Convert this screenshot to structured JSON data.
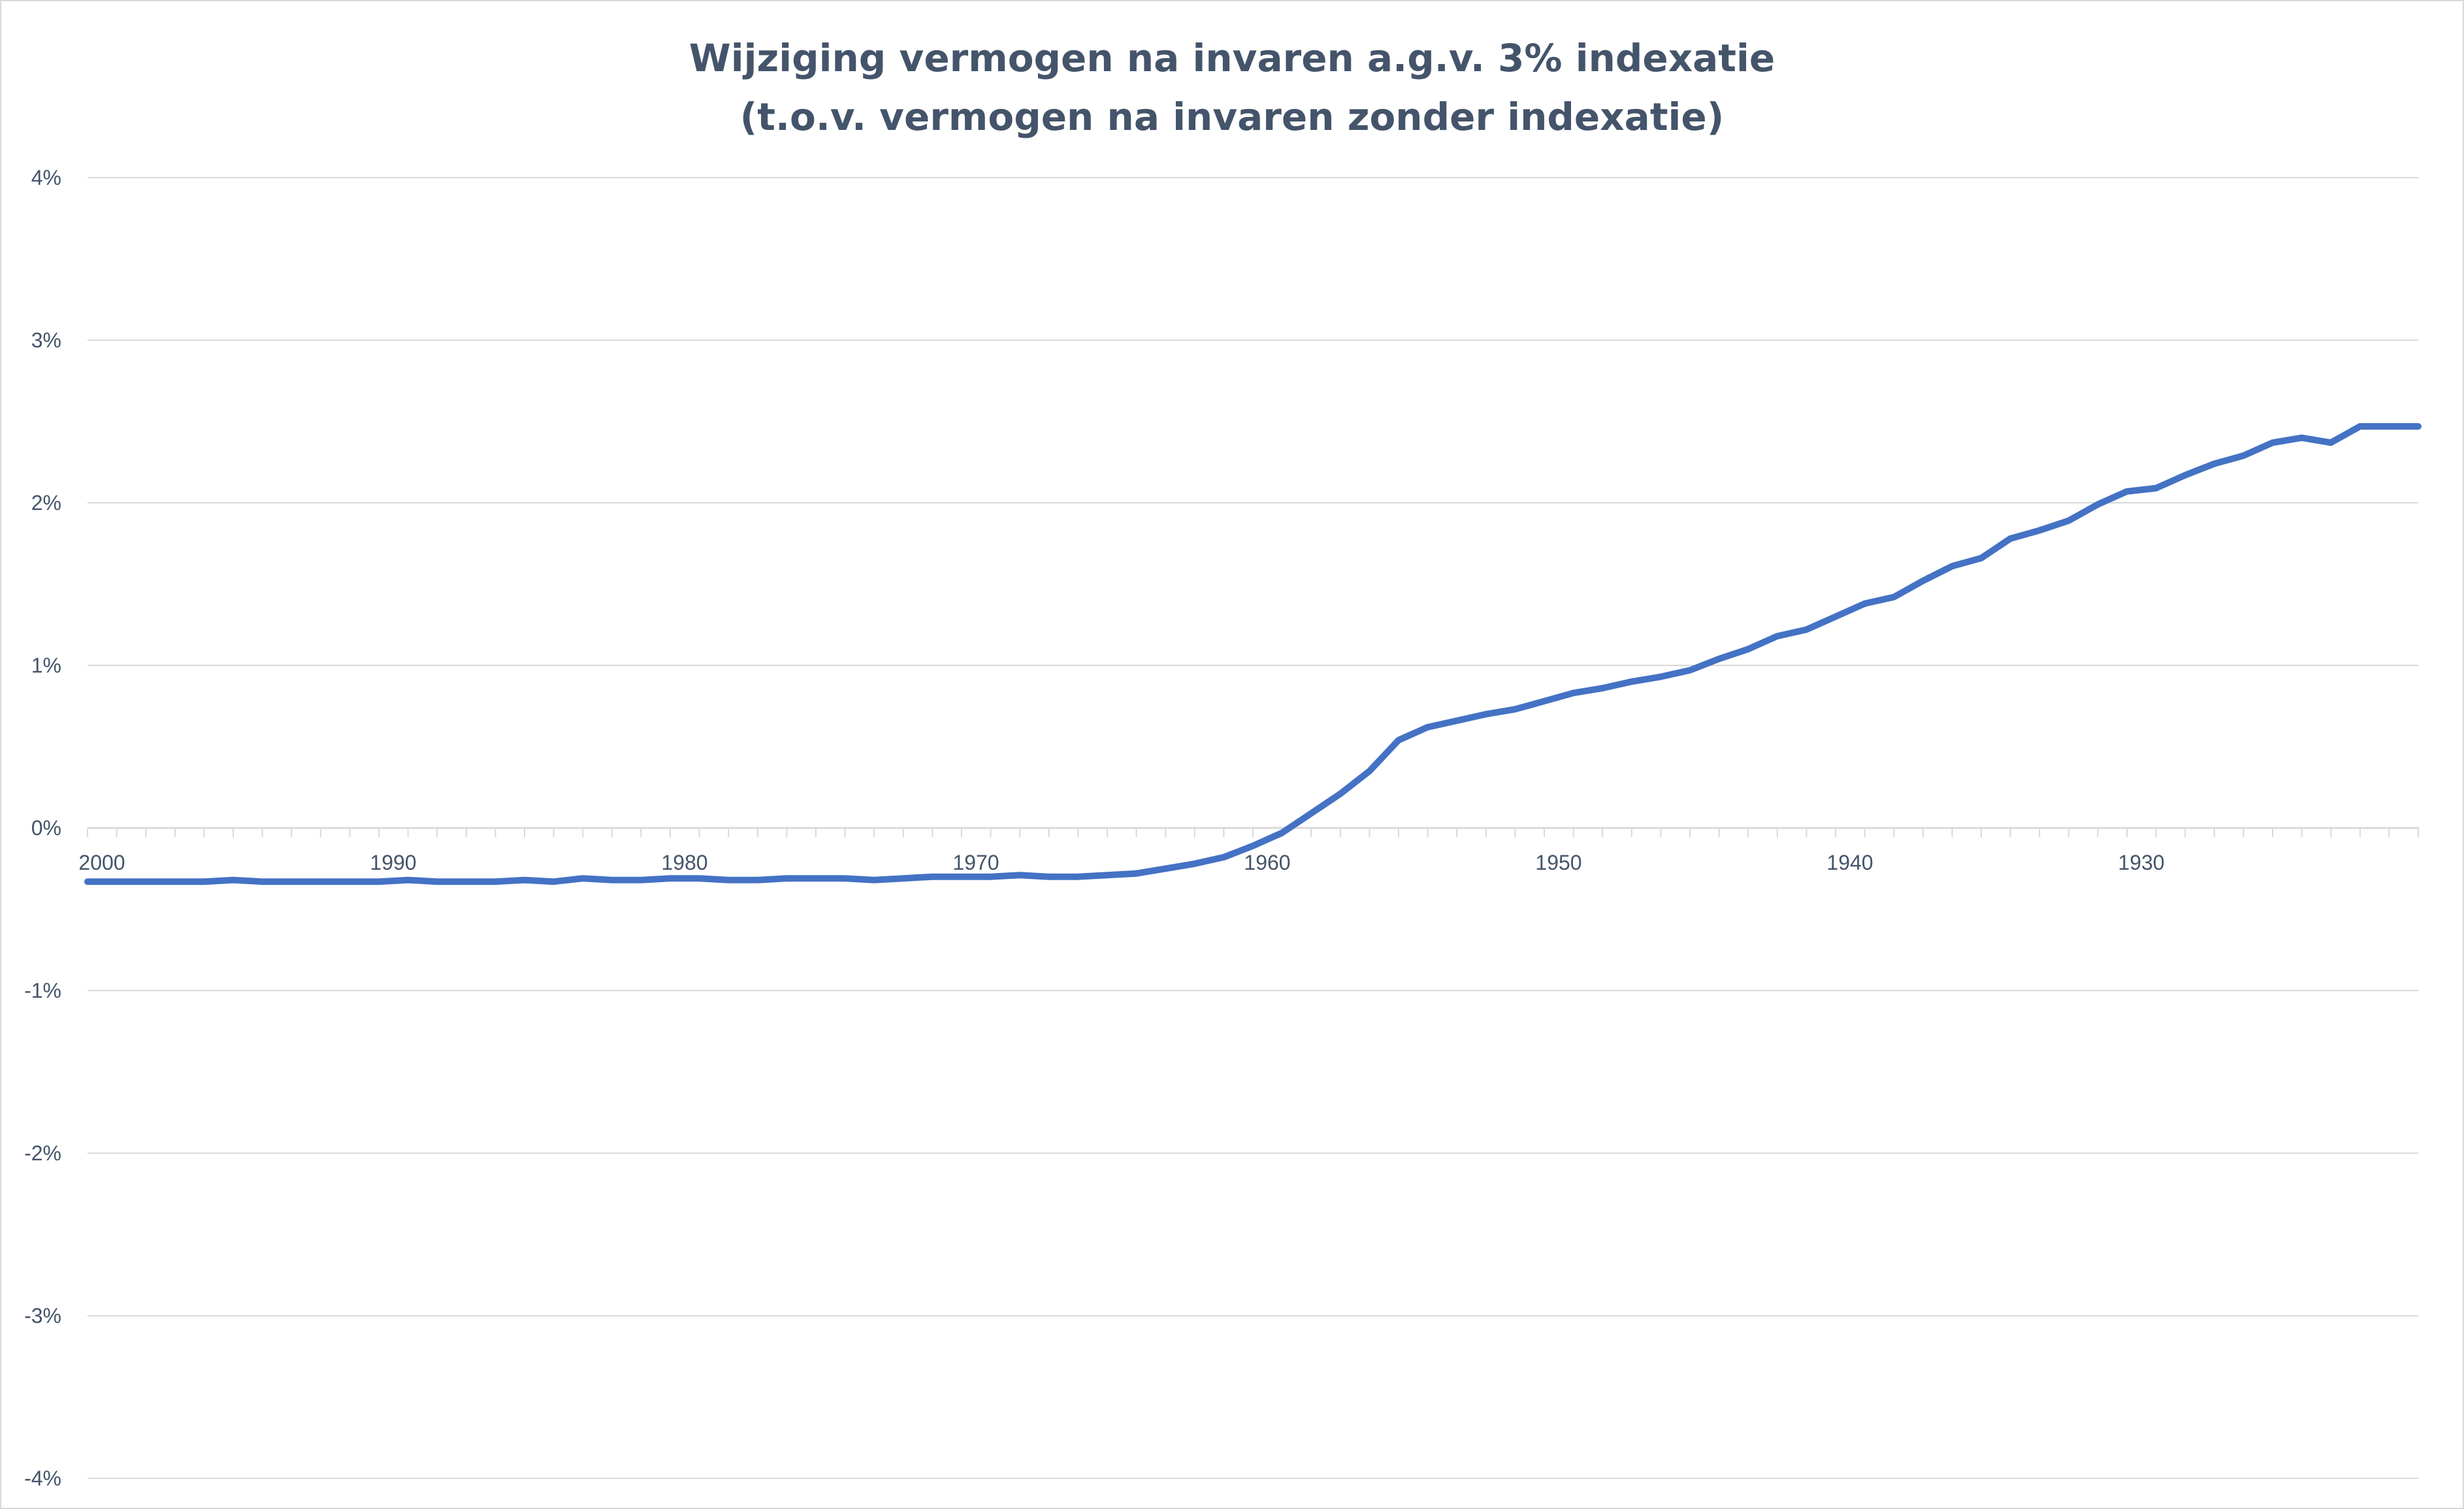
{
  "chart_data": {
    "type": "line",
    "title": "Wijziging vermogen na invaren a.g.v. 3% indexatie",
    "subtitle": "(t.o.v. vermogen na invaren zonder indexatie)",
    "xlabel": "",
    "ylabel": "",
    "x_reversed": true,
    "x_tick_labels": [
      "2000",
      "1990",
      "1980",
      "1970",
      "1960",
      "1950",
      "1940",
      "1930"
    ],
    "y_tick_labels": [
      "4%",
      "3%",
      "2%",
      "1%",
      "0%",
      "-1%",
      "-2%",
      "-3%",
      "-4%"
    ],
    "ylim": [
      -4,
      4
    ],
    "grid": true,
    "legend": "none",
    "colors": {
      "line": "#4472c4",
      "grid": "#d9d9d9",
      "text": "#44546a"
    },
    "series": [
      {
        "x": [
          2000,
          1999,
          1998,
          1997,
          1996,
          1995,
          1994,
          1993,
          1992,
          1991,
          1990,
          1989,
          1988,
          1987,
          1986,
          1985,
          1984,
          1983,
          1982,
          1981,
          1980,
          1979,
          1978,
          1977,
          1976,
          1975,
          1974,
          1973,
          1972,
          1971,
          1970,
          1969,
          1968,
          1967,
          1966,
          1965,
          1964,
          1963,
          1962,
          1961,
          1960,
          1959,
          1958,
          1957,
          1956,
          1955,
          1954,
          1953,
          1952,
          1951,
          1950,
          1949,
          1948,
          1947,
          1946,
          1945,
          1944,
          1943,
          1942,
          1941,
          1940,
          1939,
          1938,
          1937,
          1936,
          1935,
          1934,
          1933,
          1932,
          1931,
          1930,
          1929,
          1928,
          1927,
          1926,
          1925,
          1924,
          1923,
          1922,
          1921,
          1920
        ],
        "values": [
          -0.33,
          -0.33,
          -0.33,
          -0.33,
          -0.33,
          -0.32,
          -0.33,
          -0.33,
          -0.33,
          -0.33,
          -0.33,
          -0.32,
          -0.33,
          -0.33,
          -0.33,
          -0.32,
          -0.33,
          -0.31,
          -0.32,
          -0.32,
          -0.31,
          -0.31,
          -0.32,
          -0.32,
          -0.31,
          -0.31,
          -0.31,
          -0.32,
          -0.31,
          -0.3,
          -0.3,
          -0.3,
          -0.29,
          -0.3,
          -0.3,
          -0.29,
          -0.28,
          -0.25,
          -0.22,
          -0.18,
          -0.11,
          -0.03,
          0.09,
          0.21,
          0.35,
          0.54,
          0.62,
          0.66,
          0.7,
          0.73,
          0.78,
          0.83,
          0.86,
          0.9,
          0.93,
          0.97,
          1.04,
          1.1,
          1.18,
          1.22,
          1.3,
          1.38,
          1.42,
          1.52,
          1.61,
          1.66,
          1.78,
          1.83,
          1.89,
          1.99,
          2.07,
          2.09,
          2.17,
          2.24,
          2.29,
          2.37,
          2.4,
          2.37,
          2.47,
          2.47,
          2.47
        ]
      }
    ]
  }
}
